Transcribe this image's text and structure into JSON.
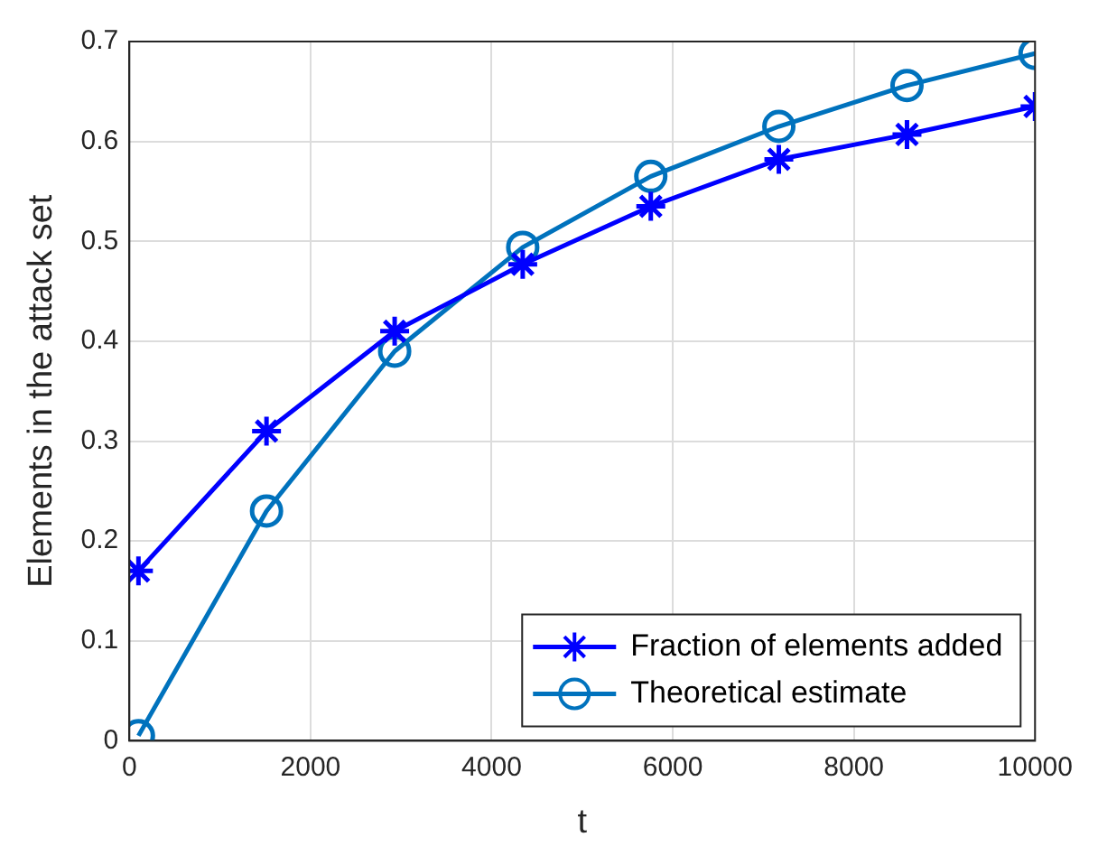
{
  "chart_data": {
    "type": "line",
    "xlabel": "t",
    "ylabel": "Elements in the attack set",
    "xlim": [
      0,
      10000
    ],
    "xticks": [
      0,
      2000,
      4000,
      6000,
      8000,
      10000
    ],
    "ylim": [
      0,
      0.7
    ],
    "yticks": [
      0,
      0.1,
      0.2,
      0.3,
      0.4,
      0.5,
      0.6,
      0.7
    ],
    "grid": true,
    "legend": "bottom right",
    "line_style": "solid",
    "x": [
      100,
      1514,
      2929,
      4343,
      5757,
      7171,
      8586,
      10000
    ],
    "series": [
      {
        "name": "Fraction of elements added",
        "color": "#0000ff",
        "marker": "cross",
        "values": [
          0.17,
          0.31,
          0.41,
          0.477,
          0.535,
          0.582,
          0.607,
          0.635
        ]
      },
      {
        "name": "Theoretical estimate",
        "color": "#0072bd",
        "marker": "circle",
        "values": [
          0.005,
          0.23,
          0.39,
          0.494,
          0.565,
          0.615,
          0.656,
          0.688
        ]
      }
    ]
  }
}
